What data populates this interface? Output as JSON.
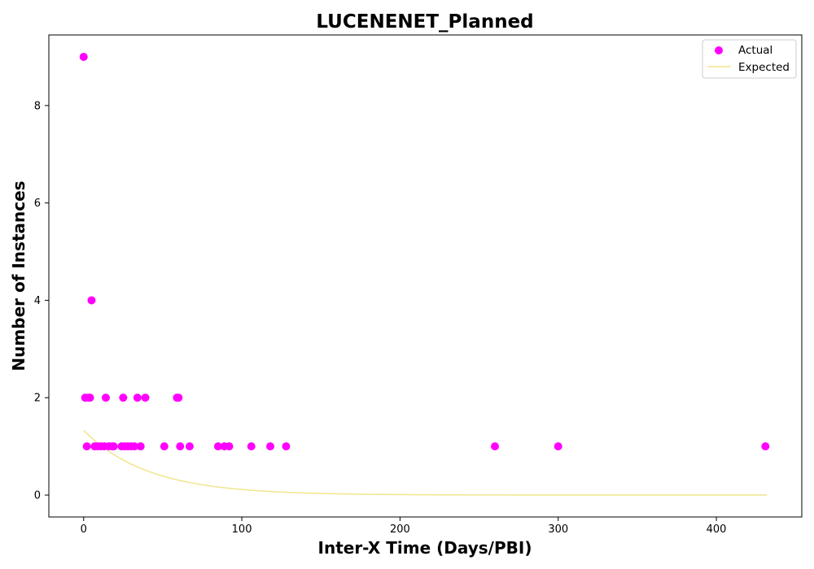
{
  "chart_data": {
    "type": "scatter",
    "title": "LUCENENET_Planned",
    "xlabel": "Inter-X Time (Days/PBI)",
    "ylabel": "Number of Instances",
    "xlim": [
      -22,
      454
    ],
    "ylim": [
      -0.45,
      9.45
    ],
    "xticks": [
      0,
      100,
      200,
      300,
      400
    ],
    "yticks": [
      0,
      2,
      4,
      6,
      8
    ],
    "grid": false,
    "legend_position": "top-right",
    "series": [
      {
        "name": "Actual",
        "kind": "scatter",
        "color": "#ff00ff",
        "points": [
          [
            0,
            9
          ],
          [
            5,
            4
          ],
          [
            1,
            2
          ],
          [
            3,
            2
          ],
          [
            4,
            2
          ],
          [
            14,
            2
          ],
          [
            25,
            2
          ],
          [
            34,
            2
          ],
          [
            39,
            2
          ],
          [
            59,
            2
          ],
          [
            60,
            2
          ],
          [
            2,
            1
          ],
          [
            7,
            1
          ],
          [
            9,
            1
          ],
          [
            11,
            1
          ],
          [
            13,
            1
          ],
          [
            16,
            1
          ],
          [
            18,
            1
          ],
          [
            19,
            1
          ],
          [
            24,
            1
          ],
          [
            26,
            1
          ],
          [
            28,
            1
          ],
          [
            30,
            1
          ],
          [
            32,
            1
          ],
          [
            36,
            1
          ],
          [
            51,
            1
          ],
          [
            61,
            1
          ],
          [
            67,
            1
          ],
          [
            85,
            1
          ],
          [
            89,
            1
          ],
          [
            92,
            1
          ],
          [
            106,
            1
          ],
          [
            118,
            1
          ],
          [
            128,
            1
          ],
          [
            260,
            1
          ],
          [
            300,
            1
          ],
          [
            431,
            1
          ]
        ]
      },
      {
        "name": "Expected",
        "kind": "line",
        "color": "#f0e68c",
        "function": "exponential",
        "amplitude": 1.33,
        "rate": 0.0245,
        "x_range": [
          0,
          432
        ]
      }
    ]
  }
}
